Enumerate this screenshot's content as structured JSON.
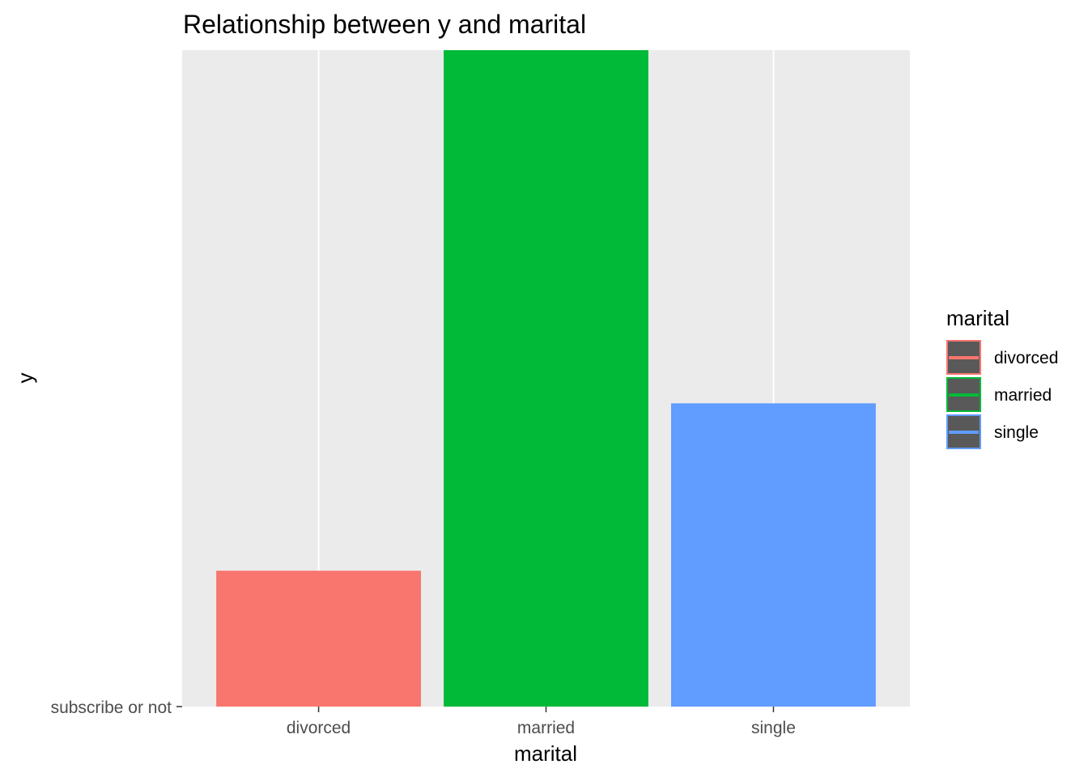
{
  "chart_data": {
    "type": "bar",
    "title": "Relationship between y and marital",
    "xlabel": "marital",
    "ylabel": "y",
    "categories": [
      "divorced",
      "married",
      "single"
    ],
    "values": [
      0.207,
      1.0,
      0.462
    ],
    "y_tick_labels": [
      "subscribe or not"
    ],
    "ylim": [
      0,
      1.0
    ],
    "grid": true,
    "legend": {
      "title": "marital",
      "placement": "right",
      "entries": [
        "divorced",
        "married",
        "single"
      ]
    },
    "colors": {
      "divorced": "#F8766D",
      "married": "#00BA38",
      "single": "#619CFF",
      "panel": "#EBEBEB",
      "grid": "#FFFFFF",
      "legend_key_fill": "#595959"
    }
  }
}
